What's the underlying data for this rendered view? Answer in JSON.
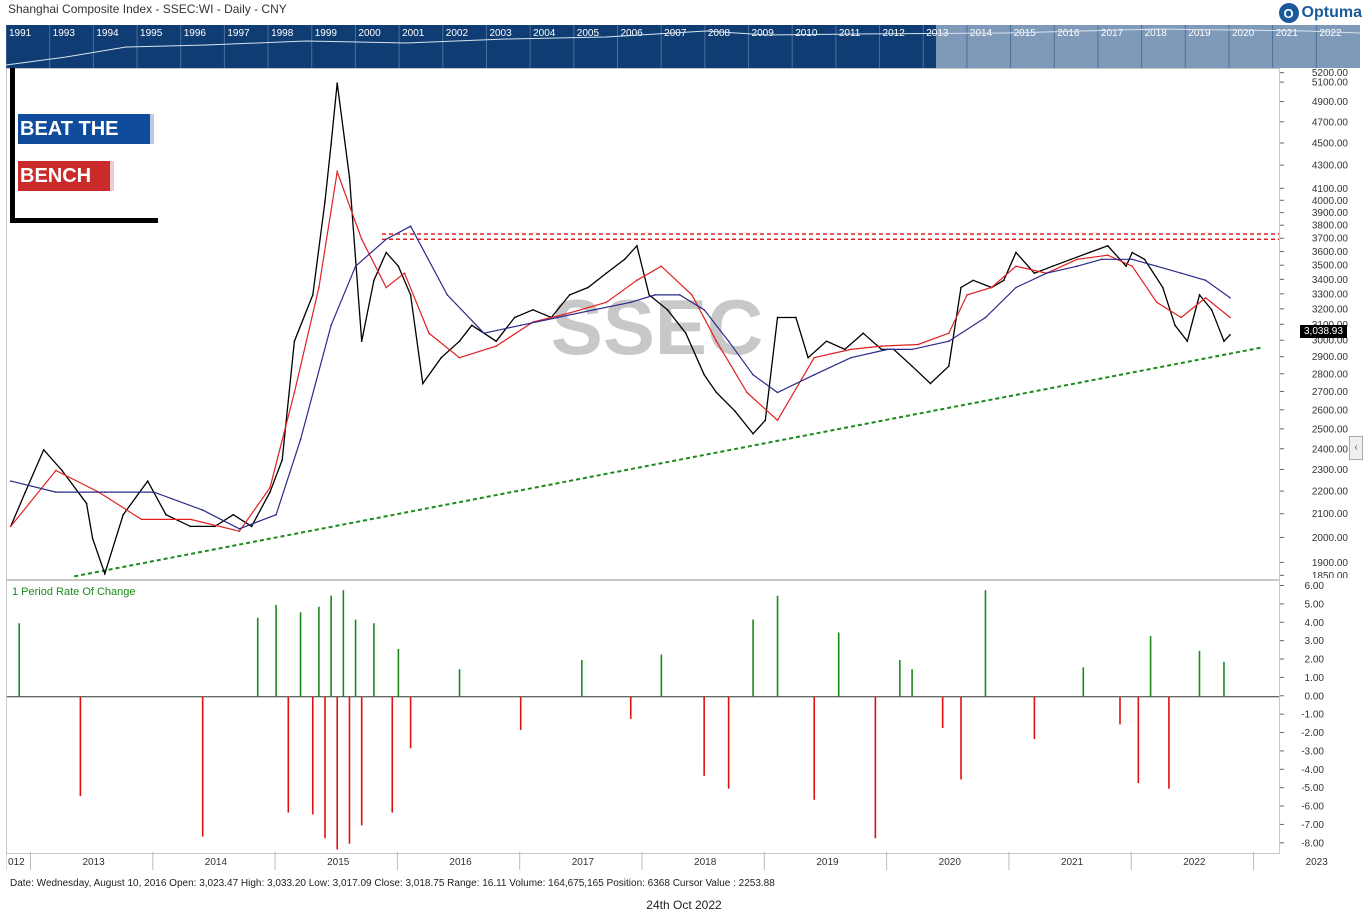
{
  "header": {
    "title": "Shanghai Composite Index - SSEC:WI - Daily - CNY",
    "logo_text": "Optuma",
    "logo_mark": "O"
  },
  "overview": {
    "years": [
      "1991",
      "1993",
      "1994",
      "1995",
      "1996",
      "1997",
      "1998",
      "1999",
      "2000",
      "2001",
      "2002",
      "2003",
      "2004",
      "2005",
      "2006",
      "2007",
      "2008",
      "2009",
      "2010",
      "2011",
      "2012",
      "2013",
      "2014",
      "2015",
      "2016",
      "2017",
      "2018",
      "2019",
      "2020",
      "2021",
      "2022"
    ]
  },
  "brand": {
    "line1": "BEAT THE",
    "line2": "BENCH"
  },
  "watermark": "SSEC",
  "last_price": "3,038.93",
  "roc_label": "1 Period Rate Of Change",
  "status_bar": "Date: Wednesday, August 10, 2016 Open: 3,023.47 High: 3,033.20 Low: 3,017.09 Close: 3,018.75 Range: 16.11 Volume: 164,675,165 Position: 6368 Cursor Value : 2253.88",
  "footer_date": "24th Oct 2022",
  "colors": {
    "price": "#000000",
    "ma_short": "#e02020",
    "ma_long": "#2a2a8a",
    "up": "#1a8a1a",
    "down": "#e01010",
    "resistance": "#e02020",
    "support": "#1a8a1a"
  },
  "chart_data": [
    {
      "type": "line",
      "title": "Shanghai Composite Index - SSEC:WI - Daily - CNY",
      "x_ticks": [
        "012",
        "2013",
        "2014",
        "2015",
        "2016",
        "2017",
        "2018",
        "2019",
        "2020",
        "2021",
        "2022",
        "2023"
      ],
      "y_ticks": [
        "5200.00",
        "5100.00",
        "4900.00",
        "4700.00",
        "4500.00",
        "4300.00",
        "4100.00",
        "4000.00",
        "3900.00",
        "3800.00",
        "3700.00",
        "3600.00",
        "3500.00",
        "3400.00",
        "3300.00",
        "3200.00",
        "3100.00",
        "3000.00",
        "2900.00",
        "2800.00",
        "2700.00",
        "2600.00",
        "2500.00",
        "2400.00",
        "2300.00",
        "2200.00",
        "2100.00",
        "2000.00",
        "1900.00",
        "1850.00"
      ],
      "scale": "log",
      "ylim": [
        1840,
        5250
      ],
      "xlim": [
        2012.8,
        2023.2
      ],
      "series": [
        {
          "name": "",
          "role": "price",
          "x": [
            2012.83,
            2012.95,
            2013.1,
            2013.25,
            2013.45,
            2013.5,
            2013.6,
            2013.75,
            2013.95,
            2014.1,
            2014.3,
            2014.5,
            2014.65,
            2014.8,
            2014.95,
            2015.05,
            2015.15,
            2015.3,
            2015.4,
            2015.45,
            2015.5,
            2015.6,
            2015.7,
            2015.8,
            2015.9,
            2016.0,
            2016.1,
            2016.2,
            2016.35,
            2016.5,
            2016.6,
            2016.8,
            2016.95,
            2017.1,
            2017.25,
            2017.4,
            2017.55,
            2017.7,
            2017.85,
            2017.95,
            2018.05,
            2018.2,
            2018.35,
            2018.5,
            2018.6,
            2018.75,
            2018.9,
            2019.0,
            2019.1,
            2019.25,
            2019.35,
            2019.5,
            2019.65,
            2019.8,
            2019.95,
            2020.05,
            2020.2,
            2020.35,
            2020.5,
            2020.6,
            2020.7,
            2020.85,
            2020.95,
            2021.05,
            2021.2,
            2021.35,
            2021.5,
            2021.65,
            2021.8,
            2021.95,
            2022.0,
            2022.1,
            2022.25,
            2022.35,
            2022.45,
            2022.55,
            2022.65,
            2022.75,
            2022.8
          ],
          "values": [
            2050,
            2200,
            2400,
            2300,
            2150,
            2000,
            1860,
            2100,
            2250,
            2100,
            2050,
            2050,
            2100,
            2050,
            2200,
            2350,
            3000,
            3300,
            4000,
            4500,
            5100,
            4200,
            3000,
            3400,
            3600,
            3500,
            3300,
            2750,
            2900,
            3000,
            3100,
            3000,
            3150,
            3200,
            3150,
            3300,
            3350,
            3450,
            3550,
            3650,
            3300,
            3200,
            3050,
            2800,
            2700,
            2600,
            2480,
            2550,
            3150,
            3150,
            2900,
            3000,
            2950,
            3050,
            2950,
            2950,
            2850,
            2750,
            2850,
            3350,
            3400,
            3350,
            3400,
            3600,
            3450,
            3500,
            3550,
            3600,
            3650,
            3500,
            3600,
            3550,
            3350,
            3100,
            3000,
            3300,
            3200,
            3000,
            3040
          ]
        },
        {
          "name": "",
          "role": "ma_short",
          "x": [
            2012.83,
            2013.2,
            2013.55,
            2013.9,
            2014.3,
            2014.7,
            2014.95,
            2015.15,
            2015.35,
            2015.5,
            2015.7,
            2015.9,
            2016.05,
            2016.25,
            2016.5,
            2016.8,
            2017.1,
            2017.4,
            2017.7,
            2017.95,
            2018.15,
            2018.4,
            2018.6,
            2018.85,
            2019.1,
            2019.4,
            2019.7,
            2019.95,
            2020.25,
            2020.5,
            2020.65,
            2020.85,
            2021.05,
            2021.3,
            2021.55,
            2021.8,
            2022.0,
            2022.2,
            2022.4,
            2022.6,
            2022.8
          ],
          "values": [
            2050,
            2300,
            2200,
            2080,
            2080,
            2030,
            2220,
            2700,
            3350,
            4250,
            3700,
            3350,
            3450,
            3050,
            2900,
            2970,
            3120,
            3180,
            3250,
            3400,
            3500,
            3300,
            3000,
            2700,
            2550,
            2900,
            2950,
            2970,
            2980,
            3050,
            3300,
            3350,
            3500,
            3450,
            3550,
            3580,
            3500,
            3250,
            3150,
            3280,
            3150
          ]
        },
        {
          "name": "",
          "role": "ma_long",
          "x": [
            2012.83,
            2013.2,
            2013.6,
            2014.0,
            2014.4,
            2014.7,
            2015.0,
            2015.2,
            2015.45,
            2015.65,
            2015.9,
            2016.1,
            2016.4,
            2016.7,
            2017.0,
            2017.3,
            2017.6,
            2017.9,
            2018.1,
            2018.3,
            2018.5,
            2018.7,
            2018.9,
            2019.1,
            2019.4,
            2019.7,
            2020.0,
            2020.2,
            2020.5,
            2020.8,
            2021.05,
            2021.3,
            2021.55,
            2021.75,
            2022.0,
            2022.2,
            2022.4,
            2022.6,
            2022.8
          ],
          "values": [
            2250,
            2200,
            2200,
            2200,
            2120,
            2040,
            2100,
            2450,
            3100,
            3500,
            3700,
            3800,
            3300,
            3050,
            3100,
            3150,
            3200,
            3250,
            3300,
            3300,
            3200,
            3000,
            2800,
            2700,
            2800,
            2900,
            2950,
            2950,
            3000,
            3150,
            3350,
            3450,
            3500,
            3550,
            3550,
            3500,
            3450,
            3400,
            3280
          ]
        }
      ],
      "resistance_levels": [
        3740,
        3700
      ],
      "support_line": {
        "start": [
          2013.35,
          1850
        ],
        "end": [
          2023.05,
          2960
        ]
      }
    },
    {
      "type": "bar",
      "title": "1 Period Rate Of Change",
      "y_ticks": [
        "6.00",
        "5.00",
        "4.00",
        "3.00",
        "2.00",
        "1.00",
        "0.00",
        "-1.00",
        "-2.00",
        "-3.00",
        "-4.00",
        "-5.00",
        "-6.00",
        "-7.00",
        "-8.00"
      ],
      "ylim": [
        -8.5,
        6.3
      ],
      "x": [
        2012.9,
        2013.4,
        2014.4,
        2014.85,
        2015.0,
        2015.1,
        2015.2,
        2015.3,
        2015.35,
        2015.4,
        2015.45,
        2015.5,
        2015.55,
        2015.6,
        2015.65,
        2015.7,
        2015.8,
        2015.95,
        2016.0,
        2016.1,
        2016.5,
        2017.0,
        2017.5,
        2017.9,
        2018.15,
        2018.5,
        2018.7,
        2018.9,
        2019.1,
        2019.4,
        2019.6,
        2019.9,
        2020.1,
        2020.2,
        2020.45,
        2020.6,
        2020.8,
        2021.2,
        2021.6,
        2021.9,
        2022.05,
        2022.15,
        2022.3,
        2022.55,
        2022.75
      ],
      "values": [
        4.0,
        -5.4,
        -7.6,
        4.3,
        5.0,
        -6.3,
        4.6,
        -6.4,
        4.9,
        -7.7,
        5.5,
        -8.3,
        5.8,
        -8.0,
        4.2,
        -7.0,
        4.0,
        -6.3,
        2.6,
        -2.8,
        1.5,
        -1.8,
        2.0,
        -1.2,
        2.3,
        -4.3,
        -5.0,
        4.2,
        5.5,
        -5.6,
        3.5,
        -7.7,
        2.0,
        1.5,
        -1.7,
        -4.5,
        5.8,
        -2.3,
        1.6,
        -1.5,
        -4.7,
        3.3,
        -5.0,
        2.5,
        1.9
      ]
    }
  ]
}
